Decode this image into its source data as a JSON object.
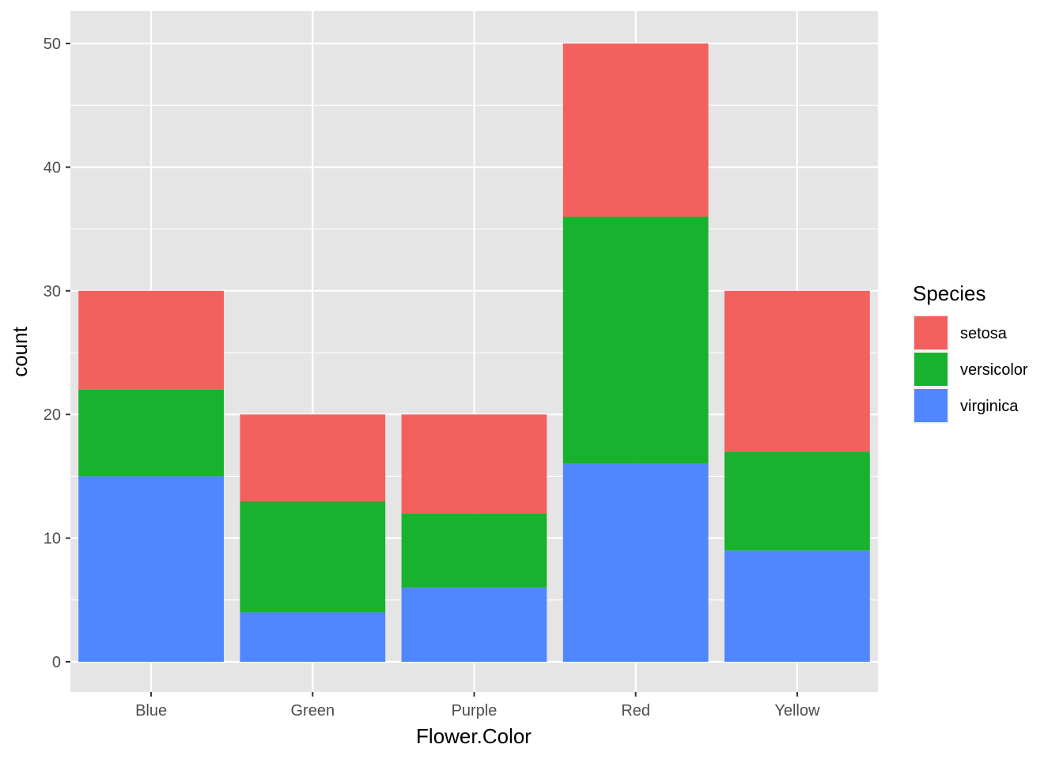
{
  "chart_data": {
    "type": "bar",
    "stacked": true,
    "categories": [
      "Blue",
      "Green",
      "Purple",
      "Red",
      "Yellow"
    ],
    "series": [
      {
        "name": "virginica",
        "color": "#5087fe",
        "values": [
          15,
          4,
          6,
          16,
          9
        ]
      },
      {
        "name": "versicolor",
        "color": "#19b22f",
        "values": [
          7,
          9,
          6,
          20,
          8
        ]
      },
      {
        "name": "setosa",
        "color": "#f3605d",
        "values": [
          8,
          7,
          8,
          14,
          13
        ]
      }
    ],
    "xlabel": "Flower.Color",
    "ylabel": "count",
    "ylim": [
      0,
      50
    ],
    "yticks": [
      "0",
      "10",
      "20",
      "30",
      "40",
      "50"
    ],
    "grid": true,
    "panel_background": "#e5e5e5",
    "legend": {
      "title": "Species",
      "position": "right",
      "items": [
        {
          "label": "setosa",
          "color": "#f3605d"
        },
        {
          "label": "versicolor",
          "color": "#19b22f"
        },
        {
          "label": "virginica",
          "color": "#5087fe"
        }
      ]
    }
  }
}
